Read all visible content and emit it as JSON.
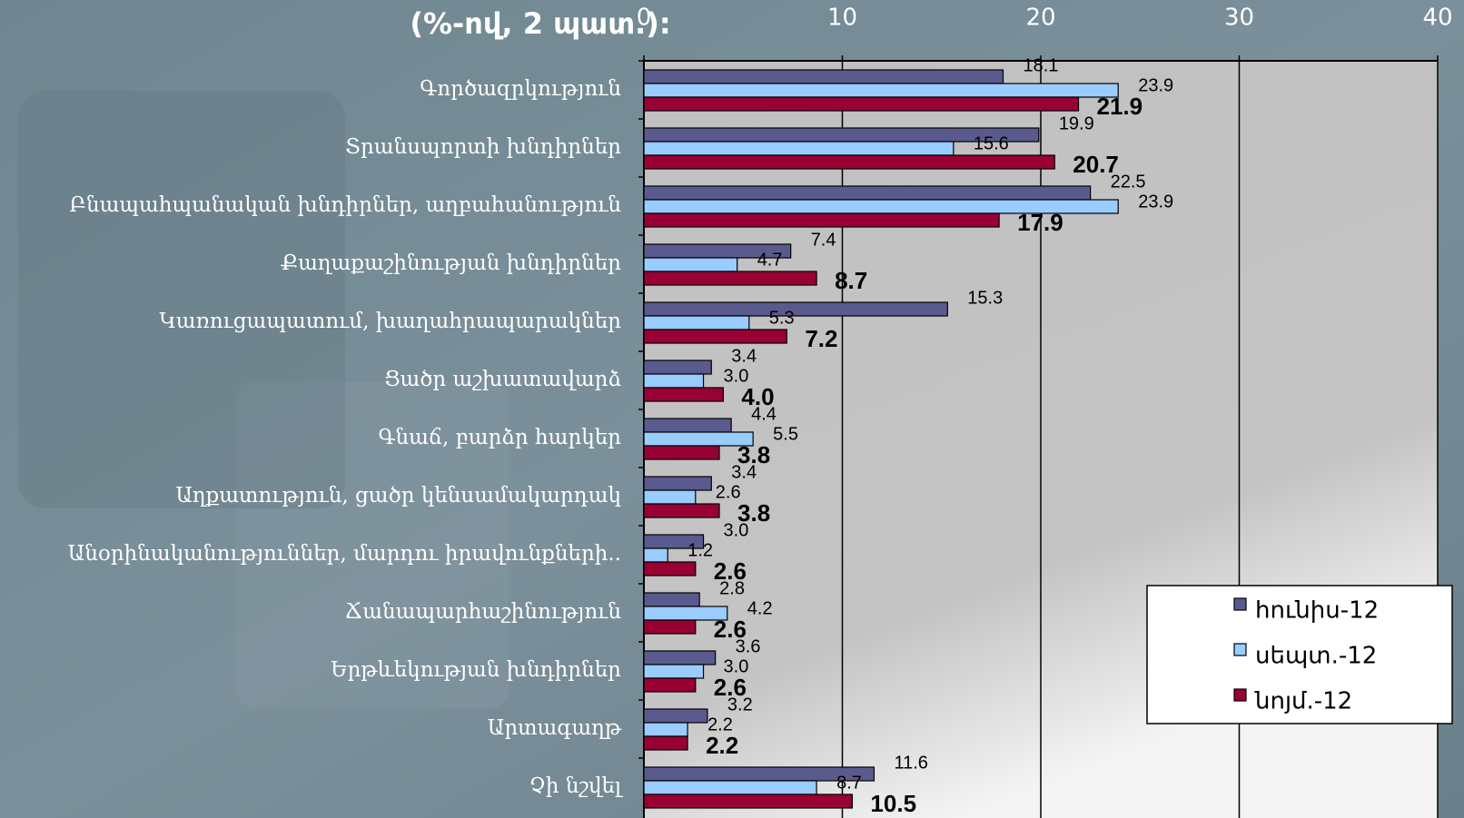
{
  "chart_data": {
    "type": "hbar",
    "title": "(%-ով, 2 պատ.):",
    "categories": [
      "Գործազրկություն",
      "Տրանսպորտի խնդիրներ",
      "Բնապահպանական խնդիրներ, աղբահանություն",
      "Քաղաքաշինության խնդիրներ",
      "Կառուցապատում, խաղահրապարակներ",
      "Ցածր աշխատավարձ",
      "Գնաճ, բարձր հարկեր",
      "Աղքատություն, ցածր կենսամակարդակ",
      "Անօրինականություններ, մարդու իրավունքների..",
      "Ճանապարհաշինություն",
      "Երթևեկության խնդիրներ",
      "Արտագաղթ",
      "Չի նշվել"
    ],
    "series": [
      {
        "name": "հունիս-12",
        "color": "#5a5a8e",
        "values": [
          18.1,
          19.9,
          22.5,
          7.4,
          15.3,
          3.4,
          4.4,
          3.4,
          3.0,
          2.8,
          3.6,
          3.2,
          11.6
        ],
        "value_labels": [
          "18.1",
          "19.9",
          "22.5",
          "7.4",
          "15.3",
          "3.4",
          "4.4",
          "3.4",
          "3.0",
          "2.8",
          "3.6",
          "3.2",
          "11.6"
        ]
      },
      {
        "name": "սեպտ.-12",
        "color": "#99ccff",
        "values": [
          23.9,
          15.6,
          23.9,
          4.7,
          5.3,
          3.0,
          5.5,
          2.6,
          1.2,
          4.2,
          3.0,
          2.2,
          8.7
        ],
        "value_labels": [
          "23.9",
          "15.6",
          "23.9",
          "4.7",
          "5.3",
          "3.0",
          "5.5",
          "2.6",
          "1.2",
          "4.2",
          "3.0",
          "2.2",
          "8.7"
        ]
      },
      {
        "name": "նոյմ.-12",
        "color": "#990033",
        "values": [
          21.9,
          20.7,
          17.9,
          8.7,
          7.2,
          4.0,
          3.8,
          3.8,
          2.6,
          2.6,
          2.6,
          2.2,
          10.5
        ],
        "value_labels": [
          "21.9",
          "20.7",
          "17.9",
          "8.7",
          "7.2",
          "4.0",
          "3.8",
          "3.8",
          "2.6",
          "2.6",
          "2.6",
          "2.2",
          "10.5"
        ]
      }
    ],
    "xlim": [
      0,
      40
    ],
    "xticks": [
      0,
      10,
      20,
      30,
      40
    ],
    "grid": true,
    "legend": "lower right"
  }
}
